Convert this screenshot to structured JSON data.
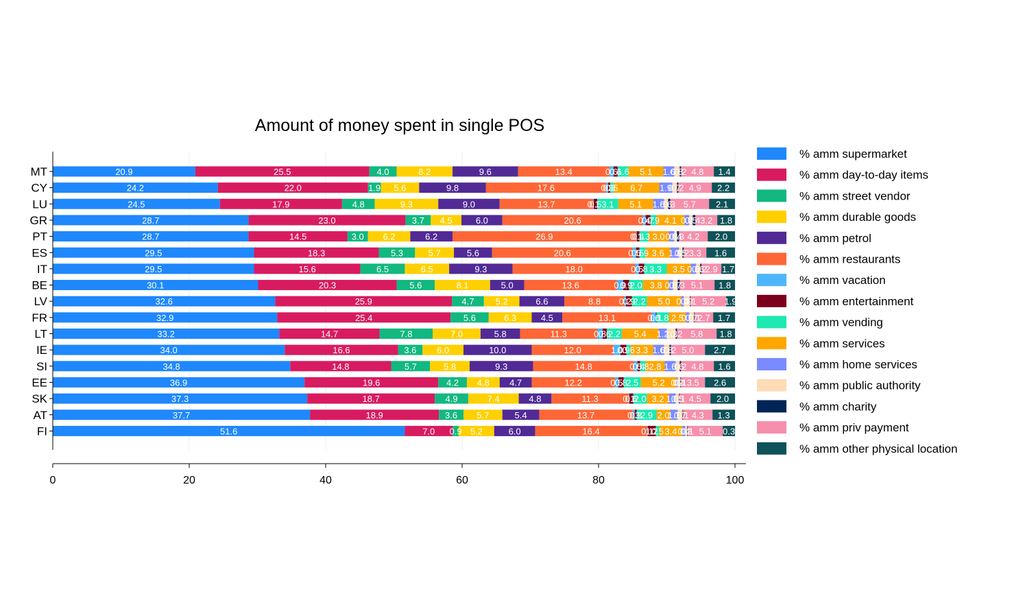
{
  "chart_data": {
    "type": "bar",
    "orientation": "horizontal",
    "stacked": true,
    "title": "Amount of money spent in single POS",
    "xlim": [
      0,
      100
    ],
    "xticks": [
      "0",
      "20",
      "40",
      "60",
      "80",
      "100"
    ],
    "grid": true,
    "legend_position": "right",
    "categories": [
      "MT",
      "CY",
      "LU",
      "GR",
      "PT",
      "ES",
      "IT",
      "BE",
      "LV",
      "FR",
      "LT",
      "IE",
      "SI",
      "EE",
      "SK",
      "AT",
      "FI"
    ],
    "series": [
      {
        "name": "% amm supermarket",
        "color": "#1f88fd",
        "values": [
          20.9,
          24.2,
          24.5,
          28.7,
          28.7,
          29.5,
          29.5,
          30.1,
          32.6,
          32.9,
          33.2,
          34.0,
          34.8,
          36.9,
          37.3,
          37.7,
          51.6
        ]
      },
      {
        "name": "% amm day-to-day items",
        "color": "#d81b60",
        "values": [
          25.5,
          22.0,
          17.9,
          23.0,
          14.5,
          18.3,
          15.6,
          20.3,
          25.9,
          25.4,
          14.7,
          16.6,
          14.8,
          19.6,
          18.7,
          18.9,
          7.0
        ]
      },
      {
        "name": "% amm street vendor",
        "color": "#12b880",
        "values": [
          4.0,
          1.9,
          4.8,
          3.7,
          3.0,
          5.3,
          6.5,
          5.6,
          4.7,
          5.6,
          7.8,
          3.6,
          5.7,
          4.2,
          4.9,
          3.6,
          0.9
        ]
      },
      {
        "name": "% amm durable goods",
        "color": "#ffd000",
        "values": [
          8.2,
          5.6,
          9.3,
          4.5,
          6.2,
          5.7,
          6.5,
          8.1,
          5.2,
          6.3,
          7.0,
          6.0,
          5.8,
          4.8,
          7.4,
          5.7,
          5.2
        ]
      },
      {
        "name": "% amm petrol",
        "color": "#512a95",
        "values": [
          9.6,
          9.8,
          9.0,
          6.0,
          6.2,
          5.6,
          9.3,
          5.0,
          6.6,
          4.5,
          5.8,
          10.0,
          9.3,
          4.7,
          4.8,
          5.4,
          6.0
        ]
      },
      {
        "name": "% amm restaurants",
        "color": "#fe6636",
        "values": [
          13.4,
          17.6,
          13.7,
          20.6,
          26.9,
          20.6,
          18.0,
          13.6,
          8.8,
          13.1,
          11.3,
          12.0,
          14.8,
          12.2,
          11.3,
          13.7,
          16.4
        ]
      },
      {
        "name": "% amm vacation",
        "color": "#4db6fa",
        "values": [
          0.6,
          0.3,
          0.1,
          0.4,
          0.1,
          0.5,
          0.5,
          0.9,
          0.2,
          0.6,
          0.8,
          1.0,
          0.5,
          0.5,
          0.1,
          0.3,
          0.1
        ]
      },
      {
        "name": "% amm entertainment",
        "color": "#7c0019",
        "values": [
          0.6,
          0.3,
          0.5,
          0.7,
          0.4,
          0.5,
          0.8,
          0.9,
          0.9,
          0.1,
          0.6,
          0.9,
          0.4,
          0.8,
          0.6,
          0.3,
          1.2
        ]
      },
      {
        "name": "% amm vending",
        "color": "#1de9b0",
        "values": [
          1.6,
          0.5,
          3.1,
          0.9,
          1.3,
          0.9,
          3.3,
          2.0,
          2.2,
          1.8,
          2.2,
          0.6,
          0.8,
          2.5,
          2.0,
          2.9,
          0.5
        ]
      },
      {
        "name": "% amm services",
        "color": "#ffa600",
        "values": [
          5.1,
          6.7,
          5.1,
          4.1,
          3.0,
          3.6,
          3.5,
          3.8,
          5.0,
          2.5,
          5.4,
          3.3,
          2.8,
          5.2,
          3.2,
          2.0,
          3.4
        ]
      },
      {
        "name": "% amm home services",
        "color": "#7a8aff",
        "values": [
          1.6,
          1.9,
          1.6,
          0.7,
          0.8,
          1.3,
          0.8,
          0.6,
          0.4,
          0.5,
          1.2,
          1.6,
          1.6,
          0.2,
          1.0,
          1.1,
          0.4
        ]
      },
      {
        "name": "% amm public authority",
        "color": "#fcdbb6",
        "values": [
          0.8,
          0.7,
          0.6,
          0.5,
          0.4,
          0.5,
          0.6,
          0.7,
          0.9,
          0.7,
          1.3,
          0.8,
          0.6,
          0.4,
          0.5,
          0.7,
          0.3
        ]
      },
      {
        "name": "% amm charity",
        "color": "#012456",
        "values": [
          0.2,
          0.2,
          0.3,
          0.4,
          0.3,
          0.2,
          0.2,
          0.3,
          0.1,
          0.1,
          0.2,
          0.2,
          0.2,
          0.1,
          0.1,
          0.1,
          0.1
        ]
      },
      {
        "name": "% amm priv payment",
        "color": "#f68fab",
        "values": [
          4.8,
          4.9,
          5.7,
          3.2,
          4.2,
          3.3,
          2.9,
          5.1,
          5.2,
          2.7,
          5.8,
          5.0,
          4.8,
          3.5,
          4.5,
          4.3,
          5.1
        ]
      },
      {
        "name": "% amm other physical location",
        "color": "#0f5259",
        "values": [
          1.4,
          2.2,
          2.1,
          1.8,
          2.0,
          1.6,
          1.7,
          1.8,
          1.9,
          1.7,
          1.8,
          2.7,
          1.6,
          2.6,
          2.0,
          1.3,
          0.3
        ]
      }
    ]
  }
}
